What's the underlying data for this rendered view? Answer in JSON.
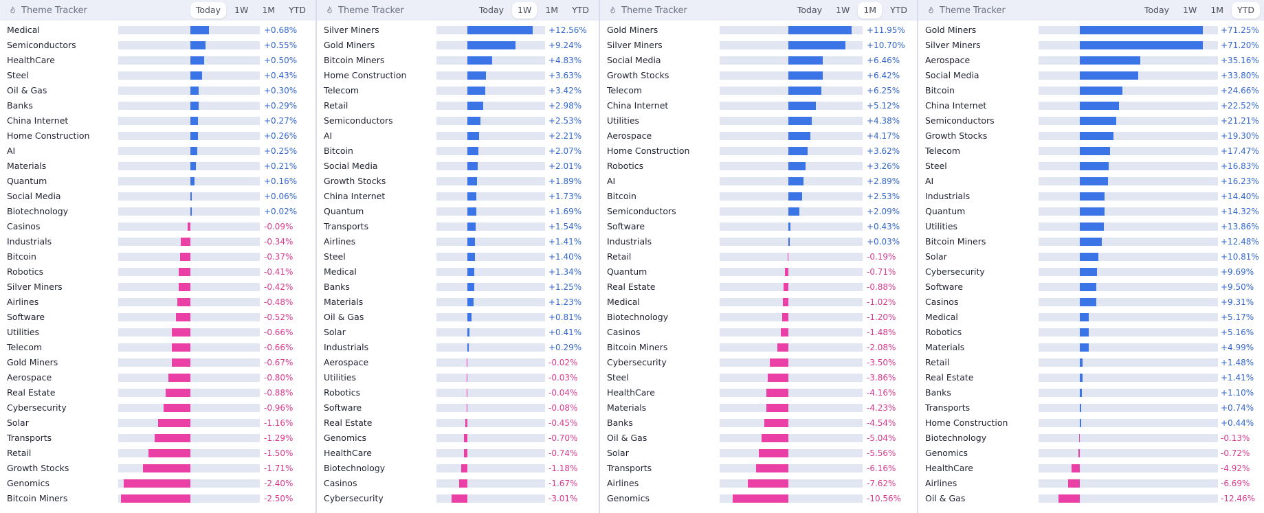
{
  "app_title": "Theme Tracker",
  "colors": {
    "positive": "#3a74e6",
    "negative": "#ea3fa4",
    "header_bg": "#eceef8",
    "track": "#e2e5f2"
  },
  "icons": {
    "title": "flame-icon"
  },
  "panels": [
    {
      "id": "today",
      "title": "Theme Tracker",
      "active_tab": "Today",
      "tabs": [
        "Today",
        "1W",
        "1M",
        "YTD"
      ],
      "scale": {
        "min": -2.6,
        "max": 2.5
      },
      "rows": [
        {
          "label": "Medical",
          "value": 0.68,
          "display": "+0.68%"
        },
        {
          "label": "Semiconductors",
          "value": 0.55,
          "display": "+0.55%"
        },
        {
          "label": "HealthCare",
          "value": 0.5,
          "display": "+0.50%"
        },
        {
          "label": "Steel",
          "value": 0.43,
          "display": "+0.43%"
        },
        {
          "label": "Oil & Gas",
          "value": 0.3,
          "display": "+0.30%"
        },
        {
          "label": "Banks",
          "value": 0.29,
          "display": "+0.29%"
        },
        {
          "label": "China Internet",
          "value": 0.27,
          "display": "+0.27%"
        },
        {
          "label": "Home Construction",
          "value": 0.26,
          "display": "+0.26%"
        },
        {
          "label": "AI",
          "value": 0.25,
          "display": "+0.25%"
        },
        {
          "label": "Materials",
          "value": 0.21,
          "display": "+0.21%"
        },
        {
          "label": "Quantum",
          "value": 0.16,
          "display": "+0.16%"
        },
        {
          "label": "Social Media",
          "value": 0.06,
          "display": "+0.06%"
        },
        {
          "label": "Biotechnology",
          "value": 0.02,
          "display": "+0.02%"
        },
        {
          "label": "Casinos",
          "value": -0.09,
          "display": "-0.09%"
        },
        {
          "label": "Industrials",
          "value": -0.34,
          "display": "-0.34%"
        },
        {
          "label": "Bitcoin",
          "value": -0.37,
          "display": "-0.37%"
        },
        {
          "label": "Robotics",
          "value": -0.41,
          "display": "-0.41%"
        },
        {
          "label": "Silver Miners",
          "value": -0.42,
          "display": "-0.42%"
        },
        {
          "label": "Airlines",
          "value": -0.48,
          "display": "-0.48%"
        },
        {
          "label": "Software",
          "value": -0.52,
          "display": "-0.52%"
        },
        {
          "label": "Utilities",
          "value": -0.66,
          "display": "-0.66%"
        },
        {
          "label": "Telecom",
          "value": -0.66,
          "display": "-0.66%"
        },
        {
          "label": "Gold Miners",
          "value": -0.67,
          "display": "-0.67%"
        },
        {
          "label": "Aerospace",
          "value": -0.8,
          "display": "-0.80%"
        },
        {
          "label": "Real Estate",
          "value": -0.88,
          "display": "-0.88%"
        },
        {
          "label": "Cybersecurity",
          "value": -0.96,
          "display": "-0.96%"
        },
        {
          "label": "Solar",
          "value": -1.16,
          "display": "-1.16%"
        },
        {
          "label": "Transports",
          "value": -1.29,
          "display": "-1.29%"
        },
        {
          "label": "Retail",
          "value": -1.5,
          "display": "-1.50%"
        },
        {
          "label": "Growth Stocks",
          "value": -1.71,
          "display": "-1.71%"
        },
        {
          "label": "Genomics",
          "value": -2.4,
          "display": "-2.40%"
        },
        {
          "label": "Bitcoin Miners",
          "value": -2.5,
          "display": "-2.50%"
        }
      ]
    },
    {
      "id": "1w",
      "title": "Theme Tracker",
      "active_tab": "1W",
      "tabs": [
        "Today",
        "1W",
        "1M",
        "YTD"
      ],
      "scale": {
        "min": -6,
        "max": 15
      },
      "rows": [
        {
          "label": "Silver Miners",
          "value": 12.56,
          "display": "+12.56%"
        },
        {
          "label": "Gold Miners",
          "value": 9.24,
          "display": "+9.24%"
        },
        {
          "label": "Bitcoin Miners",
          "value": 4.83,
          "display": "+4.83%"
        },
        {
          "label": "Home Construction",
          "value": 3.63,
          "display": "+3.63%"
        },
        {
          "label": "Telecom",
          "value": 3.42,
          "display": "+3.42%"
        },
        {
          "label": "Retail",
          "value": 2.98,
          "display": "+2.98%"
        },
        {
          "label": "Semiconductors",
          "value": 2.53,
          "display": "+2.53%"
        },
        {
          "label": "AI",
          "value": 2.21,
          "display": "+2.21%"
        },
        {
          "label": "Bitcoin",
          "value": 2.07,
          "display": "+2.07%"
        },
        {
          "label": "Social Media",
          "value": 2.01,
          "display": "+2.01%"
        },
        {
          "label": "Growth Stocks",
          "value": 1.89,
          "display": "+1.89%"
        },
        {
          "label": "China Internet",
          "value": 1.73,
          "display": "+1.73%"
        },
        {
          "label": "Quantum",
          "value": 1.69,
          "display": "+1.69%"
        },
        {
          "label": "Transports",
          "value": 1.54,
          "display": "+1.54%"
        },
        {
          "label": "Airlines",
          "value": 1.41,
          "display": "+1.41%"
        },
        {
          "label": "Steel",
          "value": 1.4,
          "display": "+1.40%"
        },
        {
          "label": "Medical",
          "value": 1.34,
          "display": "+1.34%"
        },
        {
          "label": "Banks",
          "value": 1.25,
          "display": "+1.25%"
        },
        {
          "label": "Materials",
          "value": 1.23,
          "display": "+1.23%"
        },
        {
          "label": "Oil & Gas",
          "value": 0.81,
          "display": "+0.81%"
        },
        {
          "label": "Solar",
          "value": 0.41,
          "display": "+0.41%"
        },
        {
          "label": "Industrials",
          "value": 0.29,
          "display": "+0.29%"
        },
        {
          "label": "Aerospace",
          "value": -0.02,
          "display": "-0.02%"
        },
        {
          "label": "Utilities",
          "value": -0.03,
          "display": "-0.03%"
        },
        {
          "label": "Robotics",
          "value": -0.04,
          "display": "-0.04%"
        },
        {
          "label": "Software",
          "value": -0.08,
          "display": "-0.08%"
        },
        {
          "label": "Real Estate",
          "value": -0.45,
          "display": "-0.45%"
        },
        {
          "label": "Genomics",
          "value": -0.7,
          "display": "-0.70%"
        },
        {
          "label": "HealthCare",
          "value": -0.74,
          "display": "-0.74%"
        },
        {
          "label": "Biotechnology",
          "value": -1.18,
          "display": "-1.18%"
        },
        {
          "label": "Casinos",
          "value": -1.67,
          "display": "-1.67%"
        },
        {
          "label": "Cybersecurity",
          "value": -3.01,
          "display": "-3.01%"
        }
      ]
    },
    {
      "id": "1m",
      "title": "Theme Tracker",
      "active_tab": "1M",
      "tabs": [
        "Today",
        "1W",
        "1M",
        "YTD"
      ],
      "scale": {
        "min": -13,
        "max": 14
      },
      "rows": [
        {
          "label": "Gold Miners",
          "value": 11.95,
          "display": "+11.95%"
        },
        {
          "label": "Silver Miners",
          "value": 10.7,
          "display": "+10.70%"
        },
        {
          "label": "Social Media",
          "value": 6.46,
          "display": "+6.46%"
        },
        {
          "label": "Growth Stocks",
          "value": 6.42,
          "display": "+6.42%"
        },
        {
          "label": "Telecom",
          "value": 6.25,
          "display": "+6.25%"
        },
        {
          "label": "China Internet",
          "value": 5.12,
          "display": "+5.12%"
        },
        {
          "label": "Utilities",
          "value": 4.38,
          "display": "+4.38%"
        },
        {
          "label": "Aerospace",
          "value": 4.17,
          "display": "+4.17%"
        },
        {
          "label": "Home Construction",
          "value": 3.62,
          "display": "+3.62%"
        },
        {
          "label": "Robotics",
          "value": 3.26,
          "display": "+3.26%"
        },
        {
          "label": "AI",
          "value": 2.89,
          "display": "+2.89%"
        },
        {
          "label": "Bitcoin",
          "value": 2.53,
          "display": "+2.53%"
        },
        {
          "label": "Semiconductors",
          "value": 2.09,
          "display": "+2.09%"
        },
        {
          "label": "Software",
          "value": 0.43,
          "display": "+0.43%"
        },
        {
          "label": "Industrials",
          "value": 0.03,
          "display": "+0.03%"
        },
        {
          "label": "Retail",
          "value": -0.19,
          "display": "-0.19%"
        },
        {
          "label": "Quantum",
          "value": -0.71,
          "display": "-0.71%"
        },
        {
          "label": "Real Estate",
          "value": -0.88,
          "display": "-0.88%"
        },
        {
          "label": "Medical",
          "value": -1.02,
          "display": "-1.02%"
        },
        {
          "label": "Biotechnology",
          "value": -1.2,
          "display": "-1.20%"
        },
        {
          "label": "Casinos",
          "value": -1.48,
          "display": "-1.48%"
        },
        {
          "label": "Bitcoin Miners",
          "value": -2.08,
          "display": "-2.08%"
        },
        {
          "label": "Cybersecurity",
          "value": -3.5,
          "display": "-3.50%"
        },
        {
          "label": "Steel",
          "value": -3.86,
          "display": "-3.86%"
        },
        {
          "label": "HealthCare",
          "value": -4.16,
          "display": "-4.16%"
        },
        {
          "label": "Materials",
          "value": -4.23,
          "display": "-4.23%"
        },
        {
          "label": "Banks",
          "value": -4.54,
          "display": "-4.54%"
        },
        {
          "label": "Oil & Gas",
          "value": -5.04,
          "display": "-5.04%"
        },
        {
          "label": "Solar",
          "value": -5.56,
          "display": "-5.56%"
        },
        {
          "label": "Transports",
          "value": -6.16,
          "display": "-6.16%"
        },
        {
          "label": "Airlines",
          "value": -7.62,
          "display": "-7.62%"
        },
        {
          "label": "Genomics",
          "value": -10.56,
          "display": "-10.56%"
        }
      ]
    },
    {
      "id": "ytd",
      "title": "Theme Tracker",
      "active_tab": "YTD",
      "tabs": [
        "Today",
        "1W",
        "1M",
        "YTD"
      ],
      "scale": {
        "min": -24,
        "max": 80
      },
      "rows": [
        {
          "label": "Gold Miners",
          "value": 71.25,
          "display": "+71.25%"
        },
        {
          "label": "Silver Miners",
          "value": 71.2,
          "display": "+71.20%"
        },
        {
          "label": "Aerospace",
          "value": 35.16,
          "display": "+35.16%"
        },
        {
          "label": "Social Media",
          "value": 33.8,
          "display": "+33.80%"
        },
        {
          "label": "Bitcoin",
          "value": 24.66,
          "display": "+24.66%"
        },
        {
          "label": "China Internet",
          "value": 22.52,
          "display": "+22.52%"
        },
        {
          "label": "Semiconductors",
          "value": 21.21,
          "display": "+21.21%"
        },
        {
          "label": "Growth Stocks",
          "value": 19.3,
          "display": "+19.30%"
        },
        {
          "label": "Telecom",
          "value": 17.47,
          "display": "+17.47%"
        },
        {
          "label": "Steel",
          "value": 16.83,
          "display": "+16.83%"
        },
        {
          "label": "AI",
          "value": 16.23,
          "display": "+16.23%"
        },
        {
          "label": "Industrials",
          "value": 14.4,
          "display": "+14.40%"
        },
        {
          "label": "Quantum",
          "value": 14.32,
          "display": "+14.32%"
        },
        {
          "label": "Utilities",
          "value": 13.86,
          "display": "+13.86%"
        },
        {
          "label": "Bitcoin Miners",
          "value": 12.48,
          "display": "+12.48%"
        },
        {
          "label": "Solar",
          "value": 10.81,
          "display": "+10.81%"
        },
        {
          "label": "Cybersecurity",
          "value": 9.69,
          "display": "+9.69%"
        },
        {
          "label": "Software",
          "value": 9.5,
          "display": "+9.50%"
        },
        {
          "label": "Casinos",
          "value": 9.31,
          "display": "+9.31%"
        },
        {
          "label": "Medical",
          "value": 5.17,
          "display": "+5.17%"
        },
        {
          "label": "Robotics",
          "value": 5.16,
          "display": "+5.16%"
        },
        {
          "label": "Materials",
          "value": 4.99,
          "display": "+4.99%"
        },
        {
          "label": "Retail",
          "value": 1.48,
          "display": "+1.48%"
        },
        {
          "label": "Real Estate",
          "value": 1.41,
          "display": "+1.41%"
        },
        {
          "label": "Banks",
          "value": 1.1,
          "display": "+1.10%"
        },
        {
          "label": "Transports",
          "value": 0.74,
          "display": "+0.74%"
        },
        {
          "label": "Home Construction",
          "value": 0.44,
          "display": "+0.44%"
        },
        {
          "label": "Biotechnology",
          "value": -0.13,
          "display": "-0.13%"
        },
        {
          "label": "Genomics",
          "value": -0.72,
          "display": "-0.72%"
        },
        {
          "label": "HealthCare",
          "value": -4.92,
          "display": "-4.92%"
        },
        {
          "label": "Airlines",
          "value": -6.69,
          "display": "-6.69%"
        },
        {
          "label": "Oil & Gas",
          "value": -12.46,
          "display": "-12.46%"
        }
      ]
    }
  ]
}
